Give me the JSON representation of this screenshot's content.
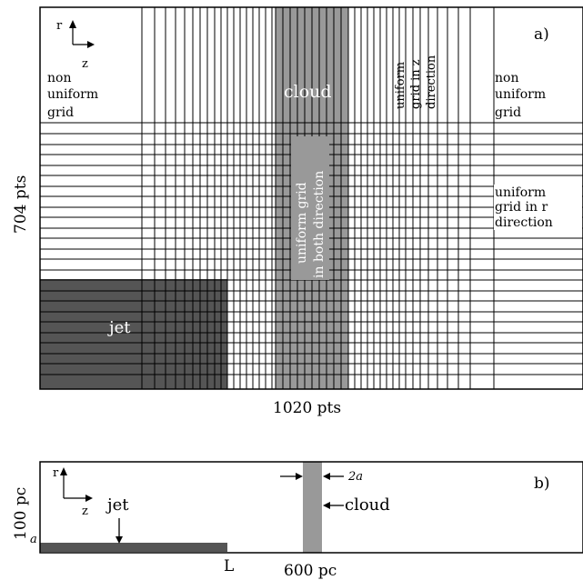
{
  "panel_a": {
    "label": "a)",
    "axis_r": "r",
    "axis_z": "z",
    "left_note": [
      "non",
      "uniform",
      "grid"
    ],
    "right_note": [
      "non",
      "uniform",
      "grid"
    ],
    "cloud_label": "cloud",
    "uniform_z_label": [
      "uniform",
      "grid in z",
      "direction"
    ],
    "uniform_both_label": [
      "uniform grid",
      "in both direction"
    ],
    "uniform_r_label": [
      "uniform",
      "grid in r",
      "direction"
    ],
    "jet_label": "jet",
    "width_label": "1020 pts",
    "height_label": "704 pts"
  },
  "panel_b": {
    "label": "b)",
    "axis_r": "r",
    "axis_z": "z",
    "jet_label": "jet",
    "cloud_label": "cloud",
    "two_a_label": "2a",
    "a_label": "a",
    "L_label": "L",
    "length_label": "600 pc",
    "height_label": "100 pc"
  },
  "colors": {
    "jet": "#555555",
    "cloud": "#999999",
    "line": "#000000"
  }
}
